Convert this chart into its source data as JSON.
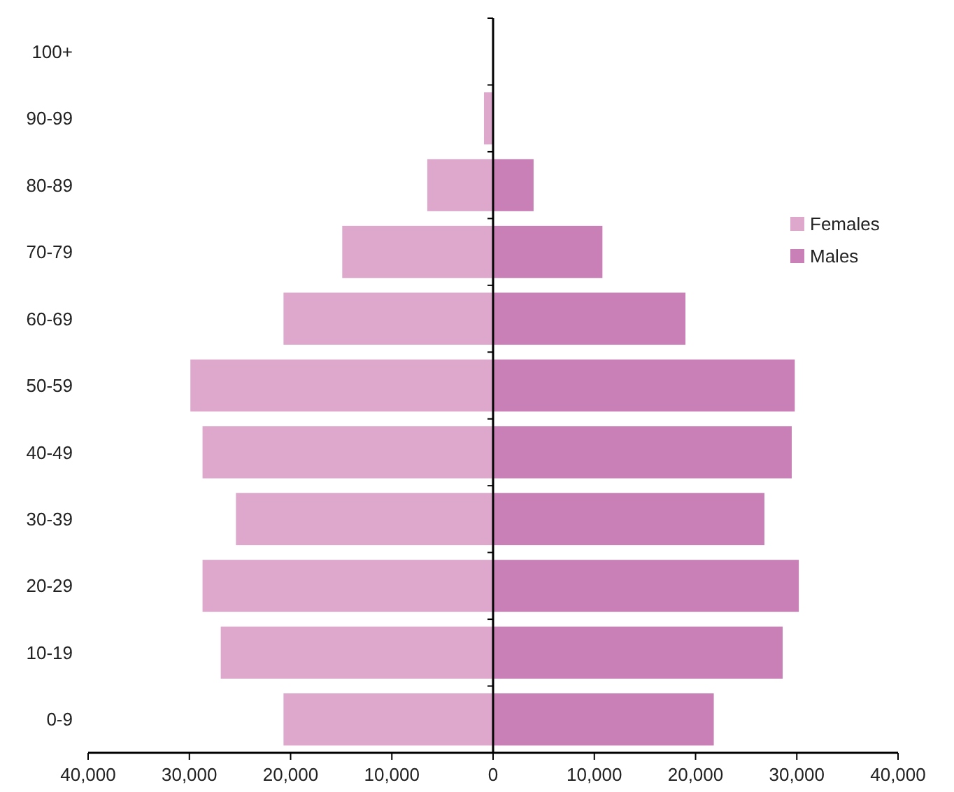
{
  "chart_data": {
    "type": "bar",
    "orientation": "horizontal",
    "stacked": true,
    "legend": "right",
    "categories": [
      "100+",
      "90-99",
      "80-89",
      "70-79",
      "60-69",
      "50-59",
      "40-49",
      "30-39",
      "20-29",
      "10-19",
      "0-9"
    ],
    "series": [
      {
        "name": "Females",
        "color": "#dda8cc",
        "values": [
          0,
          -900,
          -6500,
          -14900,
          -20700,
          -29900,
          -28700,
          -25400,
          -28700,
          -26900,
          -20700
        ]
      },
      {
        "name": "Males",
        "color": "#c880b6",
        "values": [
          0,
          null,
          4000,
          10800,
          19000,
          29800,
          29500,
          26800,
          30200,
          28600,
          21800
        ]
      }
    ],
    "xlim": [
      -40000,
      40000
    ],
    "xticks": [
      {
        "value": -40000,
        "label": "40,000"
      },
      {
        "value": -30000,
        "label": "30,000"
      },
      {
        "value": -20000,
        "label": "20,000"
      },
      {
        "value": -10000,
        "label": "10,000"
      },
      0,
      {
        "value": 10000,
        "label": "10,000"
      },
      {
        "value": 20000,
        "label": "20,000"
      },
      {
        "value": 30000,
        "label": "30,000"
      },
      {
        "value": 40000,
        "label": "40,000"
      }
    ]
  }
}
